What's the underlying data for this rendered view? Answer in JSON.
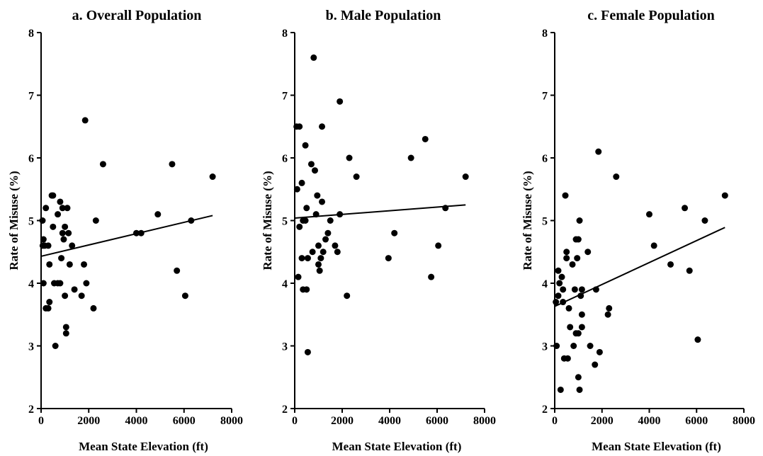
{
  "chart_data": [
    {
      "type": "scatter",
      "title": "a. Overall Population",
      "xlabel": "Mean State Elevation (ft)",
      "ylabel": "Rate of Misuse (%)",
      "xlim": [
        0,
        8000
      ],
      "ylim": [
        2,
        8
      ],
      "xticks": [
        "0",
        "2000",
        "4000",
        "6000",
        "8000"
      ],
      "yticks": [
        "2",
        "3",
        "4",
        "5",
        "6",
        "7",
        "8"
      ],
      "grid": false,
      "trendline": [
        [
          0,
          4.43
        ],
        [
          7200,
          5.08
        ]
      ],
      "points": [
        [
          60,
          5.0
        ],
        [
          100,
          4.7
        ],
        [
          70,
          4.6
        ],
        [
          150,
          4.6
        ],
        [
          100,
          4.0
        ],
        [
          200,
          5.2
        ],
        [
          200,
          3.6
        ],
        [
          300,
          4.6
        ],
        [
          350,
          4.3
        ],
        [
          350,
          3.7
        ],
        [
          300,
          3.6
        ],
        [
          450,
          5.4
        ],
        [
          500,
          5.4
        ],
        [
          500,
          4.9
        ],
        [
          550,
          4.0
        ],
        [
          600,
          3.0
        ],
        [
          700,
          4.0
        ],
        [
          700,
          5.1
        ],
        [
          800,
          5.3
        ],
        [
          800,
          4.0
        ],
        [
          850,
          4.4
        ],
        [
          900,
          4.8
        ],
        [
          900,
          5.2
        ],
        [
          950,
          4.7
        ],
        [
          1000,
          3.8
        ],
        [
          1000,
          4.9
        ],
        [
          1050,
          3.3
        ],
        [
          1050,
          3.2
        ],
        [
          1100,
          5.2
        ],
        [
          1150,
          4.8
        ],
        [
          1200,
          4.3
        ],
        [
          1300,
          4.6
        ],
        [
          1400,
          3.9
        ],
        [
          1700,
          3.8
        ],
        [
          1800,
          4.3
        ],
        [
          1850,
          6.6
        ],
        [
          1900,
          4.0
        ],
        [
          2200,
          3.6
        ],
        [
          2300,
          5.0
        ],
        [
          2600,
          5.9
        ],
        [
          4000,
          4.8
        ],
        [
          4200,
          4.8
        ],
        [
          4900,
          5.1
        ],
        [
          5500,
          5.9
        ],
        [
          5700,
          4.2
        ],
        [
          6050,
          3.8
        ],
        [
          6300,
          5.0
        ],
        [
          7200,
          5.7
        ]
      ]
    },
    {
      "type": "scatter",
      "title": "b. Male Population",
      "xlabel": "Mean State Elevation (ft)",
      "ylabel": "Rate of Misuse (%)",
      "xlim": [
        0,
        8000
      ],
      "ylim": [
        2,
        8
      ],
      "xticks": [
        "0",
        "2000",
        "4000",
        "6000",
        "8000"
      ],
      "yticks": [
        "2",
        "3",
        "4",
        "5",
        "6",
        "7",
        "8"
      ],
      "grid": false,
      "trendline": [
        [
          0,
          5.04
        ],
        [
          7200,
          5.25
        ]
      ],
      "points": [
        [
          80,
          6.5
        ],
        [
          200,
          6.5
        ],
        [
          100,
          5.5
        ],
        [
          150,
          4.1
        ],
        [
          200,
          4.9
        ],
        [
          300,
          5.6
        ],
        [
          350,
          5.0
        ],
        [
          300,
          4.4
        ],
        [
          350,
          3.9
        ],
        [
          450,
          6.2
        ],
        [
          450,
          5.0
        ],
        [
          500,
          5.2
        ],
        [
          550,
          4.4
        ],
        [
          500,
          3.9
        ],
        [
          550,
          2.9
        ],
        [
          700,
          5.9
        ],
        [
          750,
          4.5
        ],
        [
          800,
          7.6
        ],
        [
          850,
          5.8
        ],
        [
          900,
          5.1
        ],
        [
          950,
          5.4
        ],
        [
          1000,
          4.3
        ],
        [
          1000,
          4.6
        ],
        [
          1050,
          4.2
        ],
        [
          1100,
          4.4
        ],
        [
          1150,
          5.3
        ],
        [
          1150,
          6.5
        ],
        [
          1200,
          4.5
        ],
        [
          1300,
          4.7
        ],
        [
          1400,
          4.8
        ],
        [
          1500,
          5.0
        ],
        [
          1700,
          4.6
        ],
        [
          1800,
          4.5
        ],
        [
          1900,
          5.1
        ],
        [
          1900,
          6.9
        ],
        [
          2200,
          3.8
        ],
        [
          2300,
          6.0
        ],
        [
          2600,
          5.7
        ],
        [
          3950,
          4.4
        ],
        [
          4200,
          4.8
        ],
        [
          4900,
          6.0
        ],
        [
          5500,
          6.3
        ],
        [
          5750,
          4.1
        ],
        [
          6050,
          4.6
        ],
        [
          6350,
          5.2
        ],
        [
          7200,
          5.7
        ]
      ]
    },
    {
      "type": "scatter",
      "title": "c. Female Population",
      "xlabel": "Mean State Elevation (ft)",
      "ylabel": "Rate of Misuse (%)",
      "xlim": [
        0,
        8000
      ],
      "ylim": [
        2,
        8
      ],
      "xticks": [
        "0",
        "2000",
        "4000",
        "6000",
        "8000"
      ],
      "yticks": [
        "2",
        "3",
        "4",
        "5",
        "6",
        "7",
        "8"
      ],
      "grid": false,
      "trendline": [
        [
          0,
          3.63
        ],
        [
          7200,
          4.89
        ]
      ],
      "points": [
        [
          50,
          3.7
        ],
        [
          80,
          3.0
        ],
        [
          150,
          4.2
        ],
        [
          150,
          3.8
        ],
        [
          200,
          4.0
        ],
        [
          250,
          2.3
        ],
        [
          300,
          4.1
        ],
        [
          350,
          3.7
        ],
        [
          350,
          3.9
        ],
        [
          400,
          2.8
        ],
        [
          450,
          5.4
        ],
        [
          500,
          4.5
        ],
        [
          500,
          4.4
        ],
        [
          550,
          2.8
        ],
        [
          600,
          3.6
        ],
        [
          650,
          3.3
        ],
        [
          750,
          4.3
        ],
        [
          800,
          3.0
        ],
        [
          850,
          3.9
        ],
        [
          900,
          3.2
        ],
        [
          900,
          4.7
        ],
        [
          950,
          4.4
        ],
        [
          1000,
          3.2
        ],
        [
          1000,
          4.7
        ],
        [
          1000,
          2.5
        ],
        [
          1050,
          5.0
        ],
        [
          1050,
          2.3
        ],
        [
          1100,
          3.8
        ],
        [
          1150,
          3.3
        ],
        [
          1150,
          3.9
        ],
        [
          1150,
          3.5
        ],
        [
          1400,
          4.5
        ],
        [
          1500,
          3.0
        ],
        [
          1700,
          2.7
        ],
        [
          1750,
          3.9
        ],
        [
          1850,
          6.1
        ],
        [
          1900,
          2.9
        ],
        [
          2250,
          3.5
        ],
        [
          2300,
          3.6
        ],
        [
          2600,
          5.7
        ],
        [
          4000,
          5.1
        ],
        [
          4200,
          4.6
        ],
        [
          4900,
          4.3
        ],
        [
          5500,
          5.2
        ],
        [
          5700,
          4.2
        ],
        [
          6050,
          3.1
        ],
        [
          6350,
          5.0
        ],
        [
          7200,
          5.4
        ]
      ]
    }
  ]
}
